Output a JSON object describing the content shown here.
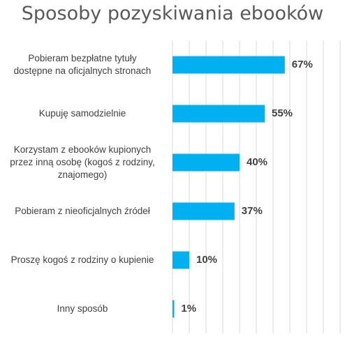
{
  "chart_data": {
    "type": "bar",
    "orientation": "horizontal",
    "title": "Sposoby pozyskiwania ebooków",
    "categories": [
      "Pobieram bezpłatne tytuły dostępne na oficjalnych stronach",
      "Kupuję samodzielnie",
      "Korzystam z ebooków kupionych przez inną osobę (kogoś z rodziny, znajomego)",
      "Pobieram z nieoficjalnych źródeł",
      "Proszę kogoś z rodziny o kupienie",
      "Inny sposób"
    ],
    "category_lines": [
      [
        "Pobieram bezpłatne tytuły",
        "dostępne na oficjalnych stronach"
      ],
      [
        "Kupuję samodzielnie"
      ],
      [
        "Korzystam z ebooków kupionych",
        "przez inną osobę (kogoś z rodziny,",
        "znajomego)"
      ],
      [
        "Pobieram z nieoficjalnych źródeł"
      ],
      [
        "Proszę kogoś z rodziny o kupienie"
      ],
      [
        "Inny sposób"
      ]
    ],
    "values": [
      67,
      55,
      40,
      37,
      10,
      1
    ],
    "value_labels": [
      "67%",
      "55%",
      "40%",
      "37%",
      "10%",
      "1%"
    ],
    "xlim": [
      0,
      100
    ],
    "grid": true,
    "legend": "none",
    "bar_color": "#00B0F0",
    "grid_color": "#D9D9D9"
  }
}
